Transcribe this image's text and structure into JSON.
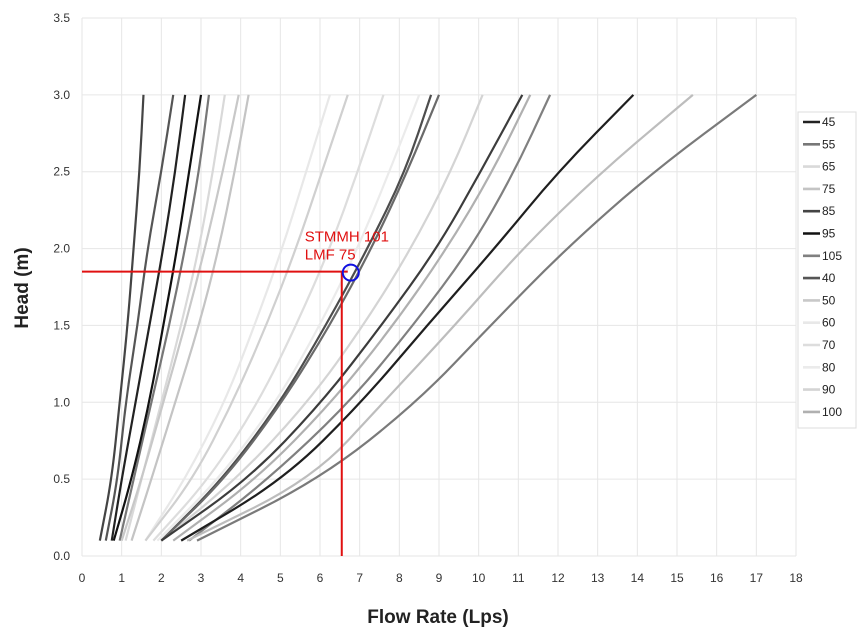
{
  "chart_data": {
    "type": "line",
    "title": "",
    "xlabel": "Flow Rate (Lps)",
    "ylabel": "Head (m)",
    "xlim": [
      0,
      18
    ],
    "ylim": [
      0,
      3.5
    ],
    "x_ticks": [
      "0",
      "1",
      "2",
      "3",
      "4",
      "5",
      "6",
      "7",
      "8",
      "9",
      "10",
      "11",
      "12",
      "13",
      "14",
      "15",
      "16",
      "17",
      "18"
    ],
    "y_ticks": [
      "0.0",
      "0.5",
      "1.0",
      "1.5",
      "2.0",
      "2.5",
      "3.0",
      "3.5"
    ],
    "grid": true,
    "legend_position": "right",
    "head_levels": [
      0.1,
      0.5,
      1.0,
      1.5,
      2.0,
      2.5,
      3.0
    ],
    "series": [
      {
        "name": "45",
        "color": "#222222",
        "x": [
          0.75,
          1.0,
          1.35,
          1.7,
          2.05,
          2.35,
          2.6
        ]
      },
      {
        "name": "55",
        "color": "#777777",
        "x": [
          0.95,
          1.3,
          1.75,
          2.2,
          2.6,
          2.95,
          3.2
        ]
      },
      {
        "name": "65",
        "color": "#d9d9d9",
        "x": [
          1.1,
          1.5,
          2.0,
          2.5,
          2.95,
          3.3,
          3.6
        ]
      },
      {
        "name": "75",
        "color": "#c4c4c4",
        "x": [
          1.25,
          1.75,
          2.35,
          2.95,
          3.45,
          3.85,
          4.2
        ]
      },
      {
        "name": "85",
        "color": "#444444",
        "x": [
          0.45,
          0.75,
          0.95,
          1.15,
          1.3,
          1.45,
          1.55
        ]
      },
      {
        "name": "95",
        "color": "#111111",
        "x": [
          0.8,
          1.25,
          1.7,
          2.05,
          2.4,
          2.7,
          3.0
        ]
      },
      {
        "name": "105",
        "color": "#808080",
        "x": [
          2.7,
          4.7,
          6.75,
          8.35,
          9.8,
          10.9,
          11.8
        ]
      },
      {
        "name": "40",
        "color": "#555555",
        "x": [
          0.6,
          0.9,
          1.1,
          1.4,
          1.65,
          2.0,
          2.3
        ]
      },
      {
        "name": "50",
        "color": "#c8c8c8",
        "x": [
          1.0,
          1.5,
          2.05,
          2.6,
          3.1,
          3.55,
          3.95
        ]
      },
      {
        "name": "60",
        "color": "#e8e8e8",
        "x": [
          1.6,
          2.6,
          3.6,
          4.35,
          5.05,
          5.65,
          6.25
        ]
      },
      {
        "name": "70",
        "color": "#dddddd",
        "x": [
          1.8,
          3.2,
          4.45,
          5.4,
          6.25,
          6.95,
          7.6
        ]
      },
      {
        "name": "80",
        "color": "#ebebeb",
        "x": [
          1.9,
          3.45,
          4.9,
          6.0,
          6.95,
          7.75,
          8.5
        ]
      },
      {
        "name": "90",
        "color": "#d4d4d4",
        "x": [
          2.0,
          3.9,
          5.7,
          7.1,
          8.3,
          9.3,
          10.1
        ]
      },
      {
        "name": "100",
        "color": "#b0b0b0",
        "x": [
          2.3,
          4.4,
          6.3,
          7.85,
          9.2,
          10.35,
          11.3
        ]
      }
    ],
    "extra_curves": [
      {
        "color": "#4d4d4d",
        "x": [
          2.0,
          3.55,
          5.0,
          6.15,
          7.2,
          8.15,
          8.8
        ]
      },
      {
        "color": "#d0d0d0",
        "x": [
          1.6,
          2.8,
          3.8,
          4.65,
          5.4,
          6.05,
          6.7
        ]
      },
      {
        "color": "#6a6a6a",
        "x": [
          2.0,
          3.6,
          5.05,
          6.25,
          7.3,
          8.2,
          9.0
        ]
      }
    ],
    "extra_curves_2": [
      {
        "color": "#3c3c3c",
        "x": [
          2.0,
          4.2,
          6.05,
          7.55,
          8.95,
          10.05,
          11.1
        ]
      },
      {
        "color": "#1f1f1f",
        "x": [
          2.5,
          5.1,
          7.05,
          8.7,
          10.4,
          12.0,
          13.9
        ]
      },
      {
        "color": "#bdbdbd",
        "x": [
          2.65,
          5.8,
          7.6,
          9.4,
          11.1,
          13.1,
          15.4
        ]
      },
      {
        "color": "#7a7a7a",
        "x": [
          2.9,
          6.0,
          8.45,
          10.3,
          12.2,
          14.4,
          17.0
        ]
      }
    ],
    "annotation": {
      "text_line1": "STMMH 101",
      "text_line2": "LMF 75",
      "point": {
        "x": 6.7,
        "y": 1.85
      },
      "line_color": "#e01010",
      "circle_color": "#1010e0"
    }
  }
}
